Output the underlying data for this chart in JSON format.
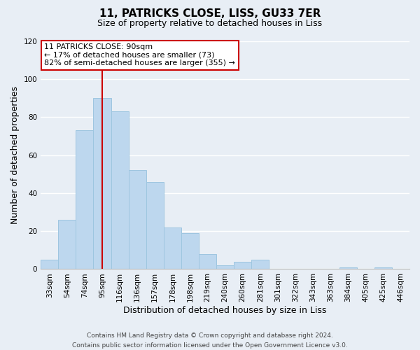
{
  "title": "11, PATRICKS CLOSE, LISS, GU33 7ER",
  "subtitle": "Size of property relative to detached houses in Liss",
  "xlabel": "Distribution of detached houses by size in Liss",
  "ylabel": "Number of detached properties",
  "bar_labels": [
    "33sqm",
    "54sqm",
    "74sqm",
    "95sqm",
    "116sqm",
    "136sqm",
    "157sqm",
    "178sqm",
    "198sqm",
    "219sqm",
    "240sqm",
    "260sqm",
    "281sqm",
    "301sqm",
    "322sqm",
    "343sqm",
    "363sqm",
    "384sqm",
    "405sqm",
    "425sqm",
    "446sqm"
  ],
  "bar_values": [
    5,
    26,
    73,
    90,
    83,
    52,
    46,
    22,
    19,
    8,
    2,
    4,
    5,
    0,
    0,
    0,
    0,
    1,
    0,
    1,
    0
  ],
  "bar_color": "#bdd7ee",
  "bar_edge_color": "#9ec6e0",
  "ylim": [
    0,
    120
  ],
  "yticks": [
    0,
    20,
    40,
    60,
    80,
    100,
    120
  ],
  "vline_index": 3,
  "vline_color": "#cc0000",
  "annotation_title": "11 PATRICKS CLOSE: 90sqm",
  "annotation_line1": "← 17% of detached houses are smaller (73)",
  "annotation_line2": "82% of semi-detached houses are larger (355) →",
  "annotation_box_color": "#ffffff",
  "annotation_box_edge": "#cc0000",
  "footnote1": "Contains HM Land Registry data © Crown copyright and database right 2024.",
  "footnote2": "Contains public sector information licensed under the Open Government Licence v3.0.",
  "background_color": "#e8eef5",
  "title_fontsize": 11,
  "subtitle_fontsize": 9,
  "xlabel_fontsize": 9,
  "ylabel_fontsize": 9,
  "tick_fontsize": 7.5,
  "annot_fontsize": 8,
  "footnote_fontsize": 6.5
}
